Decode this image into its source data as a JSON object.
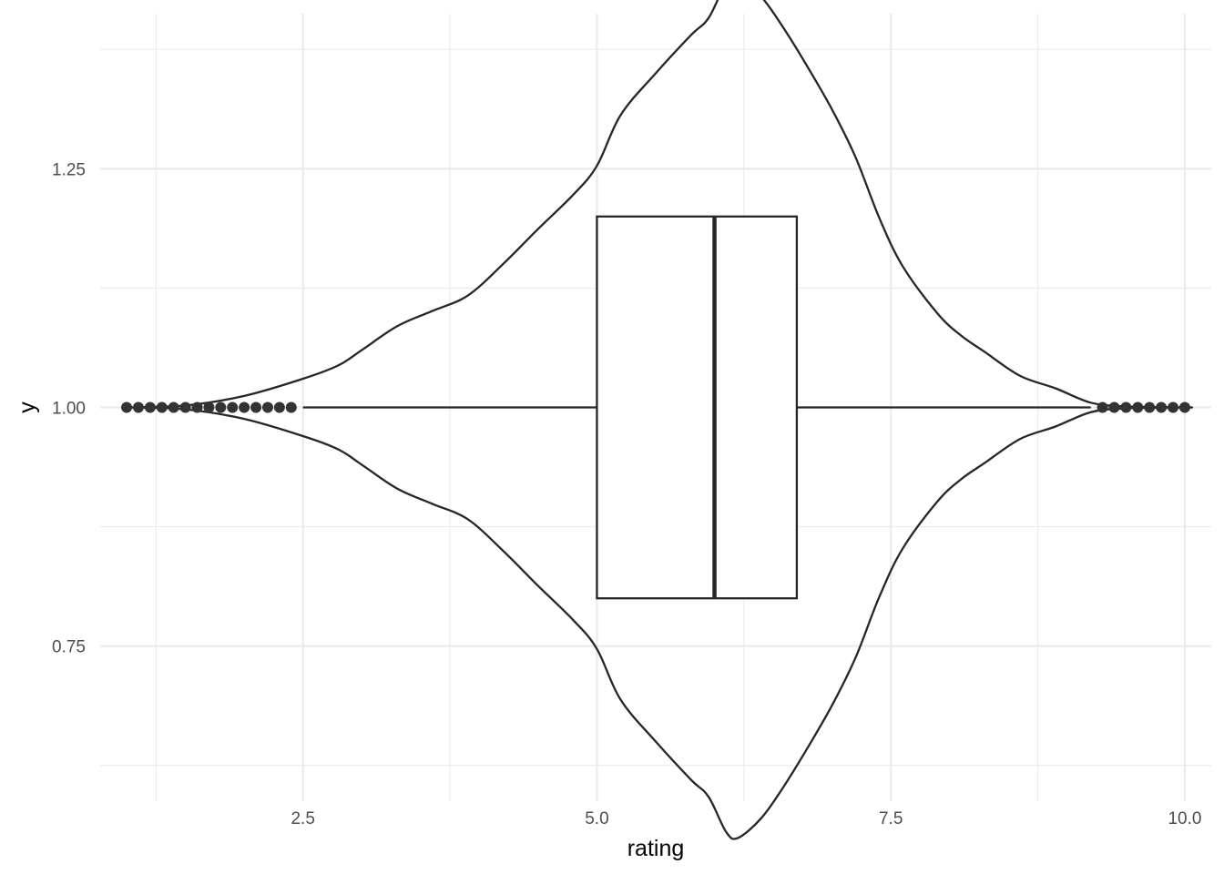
{
  "chart_data": {
    "type": "violin",
    "xlabel": "rating",
    "ylabel": "y",
    "xlim": [
      0.775,
      10.225
    ],
    "ylim": [
      0.5875,
      1.4125
    ],
    "x_ticks": [
      2.5,
      5.0,
      7.5,
      10.0
    ],
    "x_tick_labels": [
      "2.5",
      "5.0",
      "7.5",
      "10.0"
    ],
    "y_ticks": [
      0.75,
      1.0,
      1.25
    ],
    "y_tick_labels": [
      "0.75",
      "1.00",
      "1.25"
    ],
    "grid": true,
    "theme": "minimal",
    "violin": {
      "center_y": 1.0,
      "density_half_width": [
        [
          1.0,
          0.0
        ],
        [
          1.5,
          0.002
        ],
        [
          2.0,
          0.012
        ],
        [
          2.5,
          0.03
        ],
        [
          2.8,
          0.044
        ],
        [
          3.0,
          0.06
        ],
        [
          3.3,
          0.085
        ],
        [
          3.6,
          0.101
        ],
        [
          3.9,
          0.117
        ],
        [
          4.2,
          0.15
        ],
        [
          4.5,
          0.187
        ],
        [
          4.8,
          0.223
        ],
        [
          5.0,
          0.253
        ],
        [
          5.2,
          0.306
        ],
        [
          5.5,
          0.35
        ],
        [
          5.8,
          0.39
        ],
        [
          5.95,
          0.408
        ],
        [
          6.1,
          0.445
        ],
        [
          6.2,
          0.451
        ],
        [
          6.4,
          0.43
        ],
        [
          6.6,
          0.395
        ],
        [
          6.8,
          0.355
        ],
        [
          7.0,
          0.312
        ],
        [
          7.2,
          0.262
        ],
        [
          7.4,
          0.199
        ],
        [
          7.6,
          0.148
        ],
        [
          7.9,
          0.098
        ],
        [
          8.1,
          0.075
        ],
        [
          8.3,
          0.058
        ],
        [
          8.6,
          0.033
        ],
        [
          8.9,
          0.02
        ],
        [
          9.2,
          0.005
        ],
        [
          9.5,
          0.001
        ],
        [
          10.0,
          0.0
        ]
      ],
      "stroke_color": "#262626"
    },
    "boxplot": {
      "q1": 5.0,
      "median": 6.0,
      "q3": 6.7,
      "whisker_low": 2.5,
      "whisker_high": 9.2,
      "box_half_height": 0.2,
      "outliers_low": [
        1.0,
        1.1,
        1.2,
        1.3,
        1.4,
        1.5,
        1.6,
        1.7,
        1.8,
        1.9,
        2.0,
        2.1,
        2.2,
        2.3,
        2.4
      ],
      "outliers_high": [
        9.3,
        9.4,
        9.5,
        9.6,
        9.7,
        9.8,
        9.9,
        10.0
      ],
      "outlier_color": "#333333"
    }
  }
}
